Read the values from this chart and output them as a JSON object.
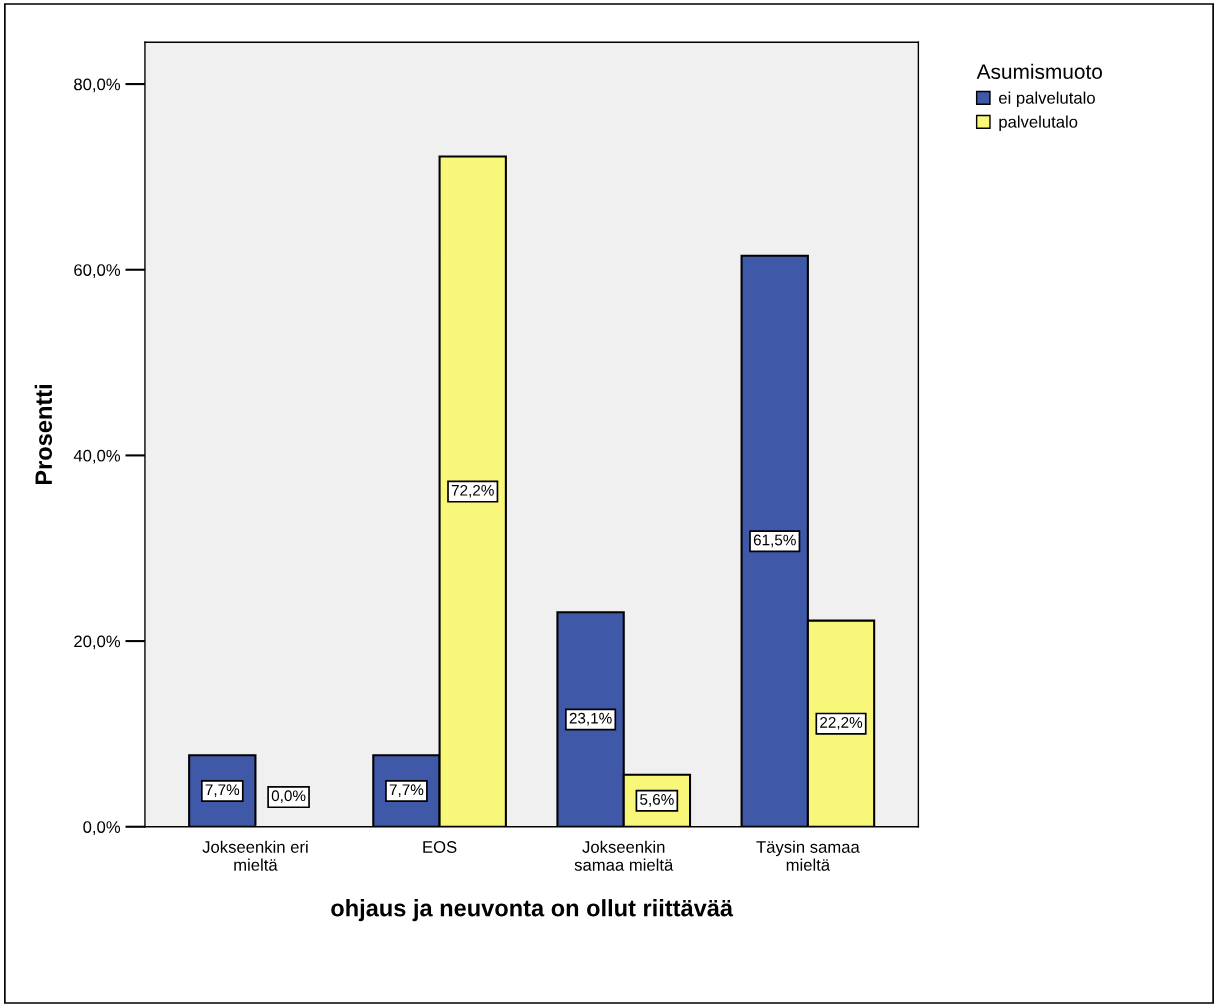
{
  "chart_data": {
    "type": "bar",
    "xlabel": "ohjaus ja neuvonta on ollut riittävää",
    "ylabel": "Prosentti",
    "legend_title": "Asumismuoto",
    "legend": "top right",
    "categories": [
      "Jokseenkin eri\nmieltä",
      "EOS",
      "Jokseenkin\nsamaa mieltä",
      "Täysin samaa\nmieltä"
    ],
    "series": [
      {
        "name": "ei palvelutalo",
        "color": "#3f58a8",
        "values": [
          7.7,
          7.7,
          23.1,
          61.5
        ],
        "value_labels": [
          "7,7%",
          "7,7%",
          "23,1%",
          "61,5%"
        ]
      },
      {
        "name": "palvelutalo",
        "color": "#f9f77a",
        "values": [
          0.0,
          72.2,
          5.6,
          22.2
        ],
        "value_labels": [
          "0,0%",
          "72,2%",
          "5,6%",
          "22,2%"
        ]
      }
    ],
    "ylim": [
      0,
      84.5
    ],
    "yticks": [
      {
        "value": 0,
        "label": "0,0%"
      },
      {
        "value": 20,
        "label": "20,0%"
      },
      {
        "value": 40,
        "label": "40,0%"
      },
      {
        "value": 60,
        "label": "60,0%"
      },
      {
        "value": 80,
        "label": "80,0%"
      }
    ],
    "grid": false
  }
}
